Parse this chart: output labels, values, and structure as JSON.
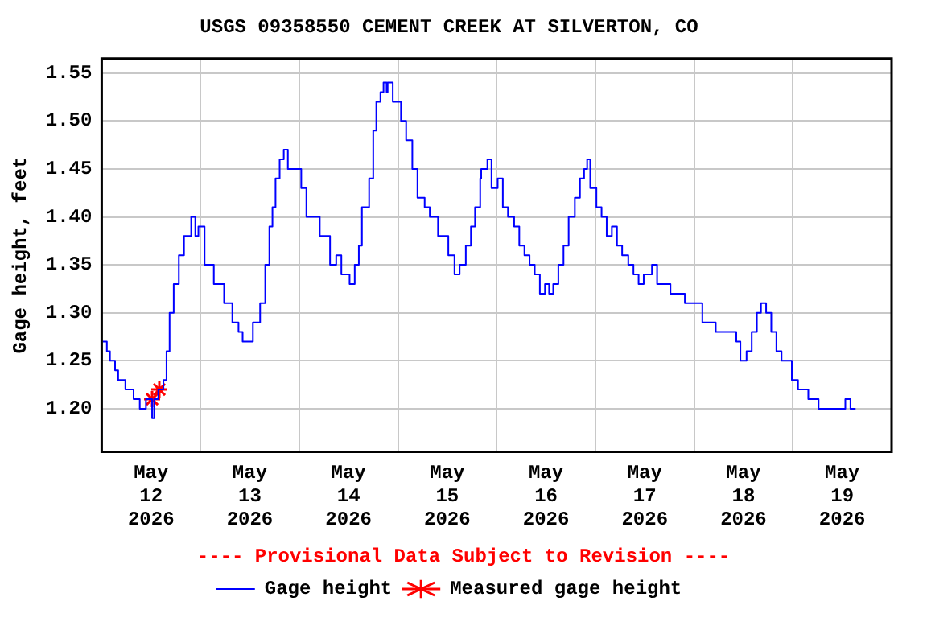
{
  "chart_data": {
    "type": "step",
    "title": "USGS 09358550 CEMENT CREEK AT SILVERTON, CO",
    "ylabel": "Gage height, feet",
    "annotations": [
      "---- Provisional Data Subject to Revision ----"
    ],
    "xlim": [
      "2026-05-12T00:00",
      "2026-05-20T00:00"
    ],
    "xticks": [
      {
        "value": "2026-05-12T12:00",
        "label": "May\n12\n2026"
      },
      {
        "value": "2026-05-13T00:00",
        "label": null
      },
      {
        "value": "2026-05-13T12:00",
        "label": "May\n13\n2026"
      },
      {
        "value": "2026-05-14T00:00",
        "label": null
      },
      {
        "value": "2026-05-14T12:00",
        "label": "May\n14\n2026"
      },
      {
        "value": "2026-05-15T00:00",
        "label": null
      },
      {
        "value": "2026-05-15T12:00",
        "label": "May\n15\n2026"
      },
      {
        "value": "2026-05-16T00:00",
        "label": null
      },
      {
        "value": "2026-05-16T12:00",
        "label": "May\n16\n2026"
      },
      {
        "value": "2026-05-17T00:00",
        "label": null
      },
      {
        "value": "2026-05-17T12:00",
        "label": "May\n17\n2026"
      },
      {
        "value": "2026-05-18T00:00",
        "label": null
      },
      {
        "value": "2026-05-18T12:00",
        "label": "May\n18\n2026"
      },
      {
        "value": "2026-05-19T00:00",
        "label": null
      },
      {
        "value": "2026-05-19T12:00",
        "label": "May\n19\n2026"
      }
    ],
    "ylim": [
      1.155,
      1.565
    ],
    "yticks": [
      {
        "value": 1.2,
        "label": "1.20"
      },
      {
        "value": 1.25,
        "label": "1.25"
      },
      {
        "value": 1.3,
        "label": "1.30"
      },
      {
        "value": 1.35,
        "label": "1.35"
      },
      {
        "value": 1.4,
        "label": "1.40"
      },
      {
        "value": 1.45,
        "label": "1.45"
      },
      {
        "value": 1.5,
        "label": "1.50"
      },
      {
        "value": 1.55,
        "label": "1.55"
      }
    ],
    "grid": true,
    "legend": "bottom",
    "series": [
      {
        "name": "Gage height",
        "color": "#0000ff",
        "marker": "none",
        "x": [
          "2026-05-12T00:15",
          "2026-05-12T01:15",
          "2026-05-12T02:00",
          "2026-05-12T03:15",
          "2026-05-12T04:00",
          "2026-05-12T05:15",
          "2026-05-12T05:45",
          "2026-05-12T07:15",
          "2026-05-12T07:45",
          "2026-05-12T09:15",
          "2026-05-12T10:30",
          "2026-05-12T10:45",
          "2026-05-12T12:15",
          "2026-05-12T12:45",
          "2026-05-12T13:45",
          "2026-05-12T15:00",
          "2026-05-12T15:45",
          "2026-05-12T16:30",
          "2026-05-12T17:30",
          "2026-05-12T18:45",
          "2026-05-12T20:00",
          "2026-05-12T21:15",
          "2026-05-12T21:45",
          "2026-05-12T22:45",
          "2026-05-12T23:30",
          "2026-05-13T01:00",
          "2026-05-13T03:15",
          "2026-05-13T05:45",
          "2026-05-13T07:45",
          "2026-05-13T09:15",
          "2026-05-13T10:15",
          "2026-05-13T11:30",
          "2026-05-13T12:45",
          "2026-05-13T14:30",
          "2026-05-13T15:45",
          "2026-05-13T16:45",
          "2026-05-13T17:30",
          "2026-05-13T18:15",
          "2026-05-13T19:15",
          "2026-05-13T20:15",
          "2026-05-13T21:15",
          "2026-05-13T23:15",
          "2026-05-14T00:30",
          "2026-05-14T01:45",
          "2026-05-14T03:45",
          "2026-05-14T05:00",
          "2026-05-14T06:15",
          "2026-05-14T07:30",
          "2026-05-14T09:00",
          "2026-05-14T10:15",
          "2026-05-14T12:15",
          "2026-05-14T13:30",
          "2026-05-14T14:30",
          "2026-05-14T15:15",
          "2026-05-14T17:00",
          "2026-05-14T18:00",
          "2026-05-14T18:45",
          "2026-05-14T19:45",
          "2026-05-14T20:30",
          "2026-05-14T21:15",
          "2026-05-14T21:30",
          "2026-05-14T22:45",
          "2026-05-15T00:45",
          "2026-05-15T02:00",
          "2026-05-15T03:30",
          "2026-05-15T04:45",
          "2026-05-15T06:30",
          "2026-05-15T07:45",
          "2026-05-15T09:45",
          "2026-05-15T11:00",
          "2026-05-15T12:15",
          "2026-05-15T13:45",
          "2026-05-15T15:00",
          "2026-05-15T16:30",
          "2026-05-15T17:45",
          "2026-05-15T18:45",
          "2026-05-15T20:00",
          "2026-05-15T20:15",
          "2026-05-15T21:45",
          "2026-05-15T22:45",
          "2026-05-16T00:15",
          "2026-05-16T01:30",
          "2026-05-16T02:45",
          "2026-05-16T04:15",
          "2026-05-16T05:30",
          "2026-05-16T06:45",
          "2026-05-16T08:00",
          "2026-05-16T09:15",
          "2026-05-16T10:30",
          "2026-05-16T11:45",
          "2026-05-16T12:45",
          "2026-05-16T13:45",
          "2026-05-16T15:00",
          "2026-05-16T16:15",
          "2026-05-16T17:30",
          "2026-05-16T19:00",
          "2026-05-16T20:15",
          "2026-05-16T21:15",
          "2026-05-16T22:00",
          "2026-05-16T22:45",
          "2026-05-17T00:15",
          "2026-05-17T01:30",
          "2026-05-17T02:45",
          "2026-05-17T04:00",
          "2026-05-17T05:15",
          "2026-05-17T06:30",
          "2026-05-17T08:00",
          "2026-05-17T09:15",
          "2026-05-17T10:30",
          "2026-05-17T11:45",
          "2026-05-17T13:45",
          "2026-05-17T15:00",
          "2026-05-17T17:00",
          "2026-05-17T18:15",
          "2026-05-17T20:15",
          "2026-05-17T21:45",
          "2026-05-17T22:45",
          "2026-05-18T00:45",
          "2026-05-18T02:00",
          "2026-05-18T03:15",
          "2026-05-18T05:15",
          "2026-05-18T06:30",
          "2026-05-18T07:45",
          "2026-05-18T09:00",
          "2026-05-18T10:15",
          "2026-05-18T11:15",
          "2026-05-18T12:45",
          "2026-05-18T14:00",
          "2026-05-18T15:15",
          "2026-05-18T16:15",
          "2026-05-18T17:30",
          "2026-05-18T18:45",
          "2026-05-18T20:00",
          "2026-05-18T21:15",
          "2026-05-18T22:30",
          "2026-05-18T23:45",
          "2026-05-19T01:15",
          "2026-05-19T02:30",
          "2026-05-19T03:45",
          "2026-05-19T05:00",
          "2026-05-19T06:15",
          "2026-05-19T07:30",
          "2026-05-19T09:30",
          "2026-05-19T11:30",
          "2026-05-19T12:45",
          "2026-05-19T14:00",
          "2026-05-19T15:15"
        ],
        "values": [
          1.27,
          1.26,
          1.25,
          1.24,
          1.23,
          1.23,
          1.22,
          1.22,
          1.21,
          1.2,
          1.2,
          1.21,
          1.19,
          1.21,
          1.22,
          1.23,
          1.26,
          1.3,
          1.33,
          1.36,
          1.38,
          1.38,
          1.4,
          1.38,
          1.39,
          1.35,
          1.33,
          1.31,
          1.29,
          1.28,
          1.27,
          1.27,
          1.29,
          1.31,
          1.35,
          1.39,
          1.41,
          1.44,
          1.46,
          1.47,
          1.45,
          1.45,
          1.43,
          1.4,
          1.4,
          1.38,
          1.38,
          1.35,
          1.36,
          1.34,
          1.33,
          1.35,
          1.37,
          1.41,
          1.44,
          1.49,
          1.52,
          1.53,
          1.54,
          1.53,
          1.54,
          1.52,
          1.5,
          1.48,
          1.45,
          1.42,
          1.41,
          1.4,
          1.38,
          1.38,
          1.36,
          1.34,
          1.35,
          1.37,
          1.39,
          1.41,
          1.44,
          1.45,
          1.46,
          1.43,
          1.44,
          1.41,
          1.4,
          1.39,
          1.37,
          1.36,
          1.35,
          1.34,
          1.32,
          1.33,
          1.32,
          1.33,
          1.35,
          1.37,
          1.4,
          1.42,
          1.44,
          1.45,
          1.46,
          1.43,
          1.41,
          1.4,
          1.38,
          1.39,
          1.37,
          1.36,
          1.35,
          1.34,
          1.33,
          1.34,
          1.35,
          1.33,
          1.33,
          1.32,
          1.32,
          1.31,
          1.31,
          1.31,
          1.29,
          1.29,
          1.28,
          1.28,
          1.28,
          1.28,
          1.27,
          1.25,
          1.26,
          1.28,
          1.3,
          1.31,
          1.3,
          1.28,
          1.26,
          1.25,
          1.25,
          1.23,
          1.22,
          1.22,
          1.21,
          1.21,
          1.2,
          1.2,
          1.2,
          1.2,
          1.21,
          1.2,
          1.2
        ]
      },
      {
        "name": "Measured gage height",
        "color": "#ff0000",
        "type": "scatter",
        "marker": "cross",
        "x": [
          "2026-05-12T12:15",
          "2026-05-12T14:00"
        ],
        "values": [
          1.21,
          1.22
        ]
      }
    ]
  }
}
